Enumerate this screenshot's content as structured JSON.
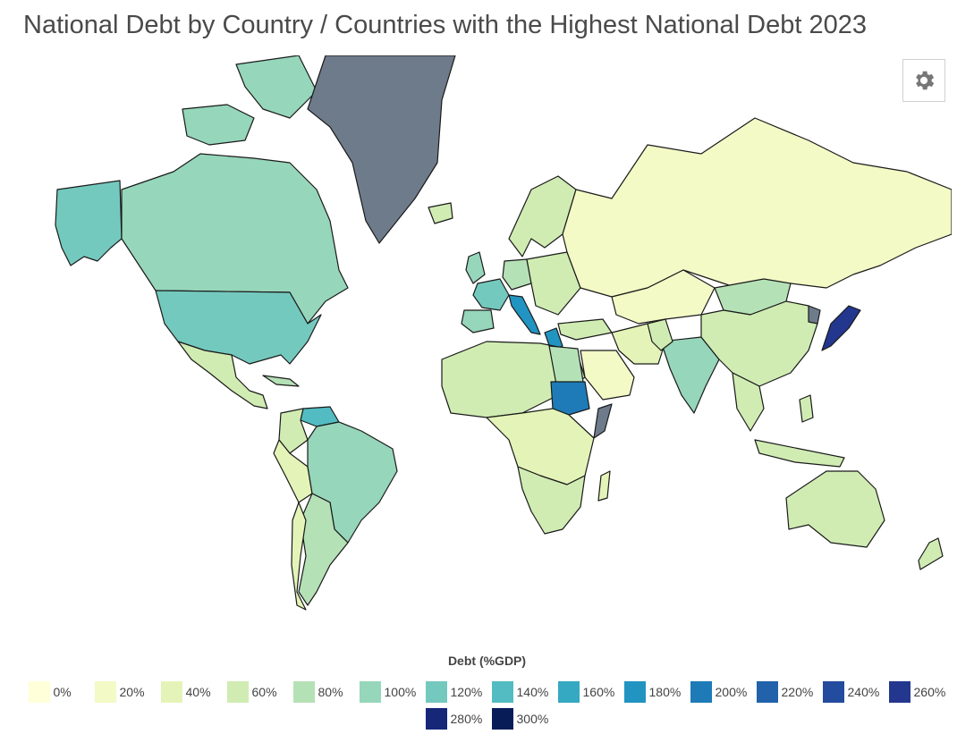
{
  "title": "National Debt by Country / Countries with the Highest National Debt 2023",
  "settings": {
    "icon": "gear-icon"
  },
  "legend": {
    "title": "Debt (%GDP)",
    "items": [
      {
        "label": "0%",
        "color": "#ffffd9"
      },
      {
        "label": "20%",
        "color": "#f3fac6"
      },
      {
        "label": "40%",
        "color": "#e4f4b8"
      },
      {
        "label": "60%",
        "color": "#d0ecb3"
      },
      {
        "label": "80%",
        "color": "#b5e1b6"
      },
      {
        "label": "100%",
        "color": "#96d6bb"
      },
      {
        "label": "120%",
        "color": "#74c9be"
      },
      {
        "label": "140%",
        "color": "#52bcc2"
      },
      {
        "label": "160%",
        "color": "#35a9c2"
      },
      {
        "label": "180%",
        "color": "#2294c1"
      },
      {
        "label": "200%",
        "color": "#1e7bb7"
      },
      {
        "label": "220%",
        "color": "#2162aa"
      },
      {
        "label": "240%",
        "color": "#234b9e"
      },
      {
        "label": "260%",
        "color": "#23378f"
      },
      {
        "label": "280%",
        "color": "#162778"
      },
      {
        "label": "300%",
        "color": "#081d58"
      }
    ]
  },
  "map": {
    "no_data_color": "#6e7b8b",
    "ocean_color": "#ffffff"
  }
}
